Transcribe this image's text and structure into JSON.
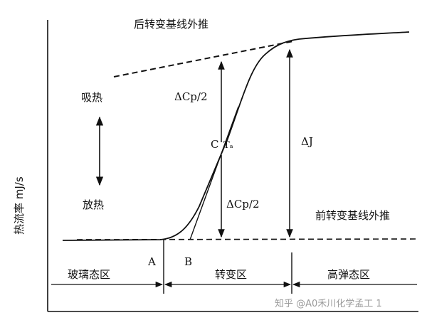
{
  "labels": {
    "after_baseline": "后转变基线外推",
    "before_baseline": "前转变基线外推",
    "endotherm": "吸热",
    "exotherm": "放热",
    "y_axis": "热流率 mJ/s",
    "delta_cp_half_top": "ΔCp/2",
    "delta_cp_half_bottom": "ΔCp/2",
    "point_c": "C",
    "tg_label": "Tₐ",
    "delta_j": "ΔJ",
    "point_a": "A",
    "point_b": "B"
  },
  "regions": {
    "glassy": "玻璃态区",
    "transition": "转变区",
    "rubbery": "高弹态区"
  },
  "watermark": "知乎 @A0禾川化学孟工 1",
  "colors": {
    "ink": "#111111",
    "watermark": "#9a9a9a",
    "background": "#ffffff"
  }
}
